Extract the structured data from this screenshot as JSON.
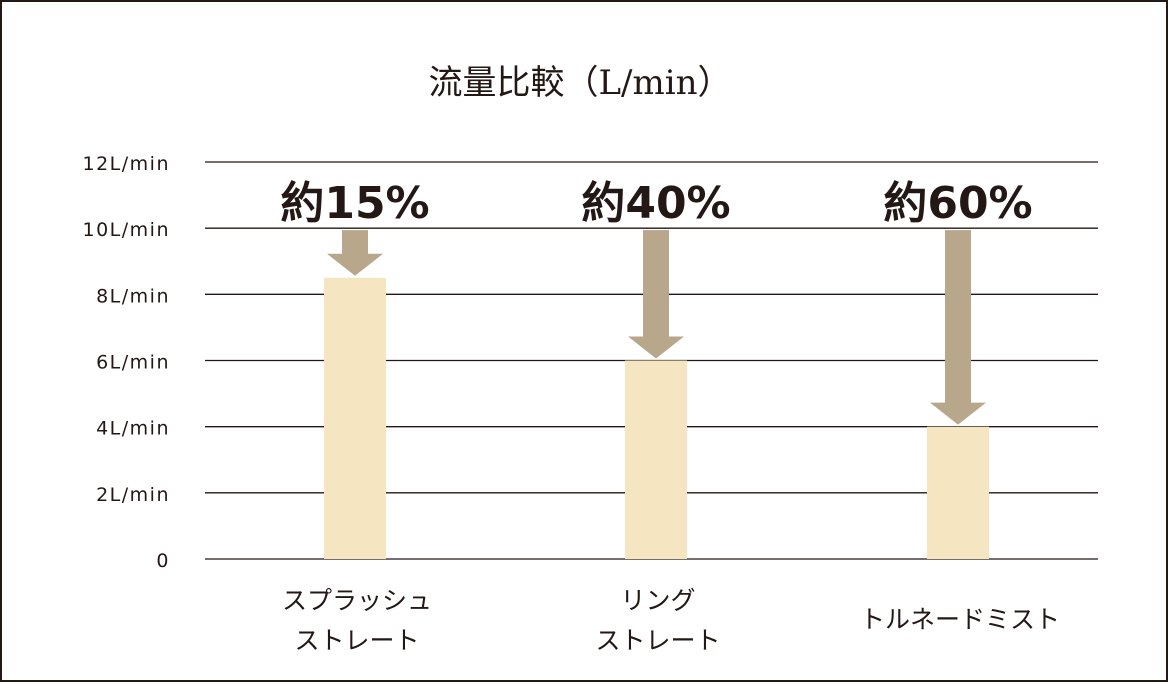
{
  "chart_data": {
    "type": "bar",
    "title": "流量比較（L/min）",
    "categories": [
      [
        "スプラッシュ",
        "ストレート"
      ],
      [
        "リング",
        "ストレート"
      ],
      [
        "トルネードミスト"
      ]
    ],
    "values": [
      8.5,
      6.0,
      4.0
    ],
    "reference_value": 10,
    "reduction_labels": [
      "約15%",
      "約40%",
      "約60%"
    ],
    "yticks": [
      {
        "value": 0,
        "label": "0"
      },
      {
        "value": 2,
        "label": "2L/min"
      },
      {
        "value": 4,
        "label": "4L/min"
      },
      {
        "value": 6,
        "label": "6L/min"
      },
      {
        "value": 8,
        "label": "8L/min"
      },
      {
        "value": 10,
        "label": "10L/min"
      },
      {
        "value": 12,
        "label": "12L/min"
      }
    ],
    "ylim": [
      0,
      12
    ],
    "grid": true,
    "colors": {
      "bar": "#f5e6c1",
      "arrow": "#b8a78b",
      "grid": "#231815",
      "text": "#231815"
    }
  }
}
